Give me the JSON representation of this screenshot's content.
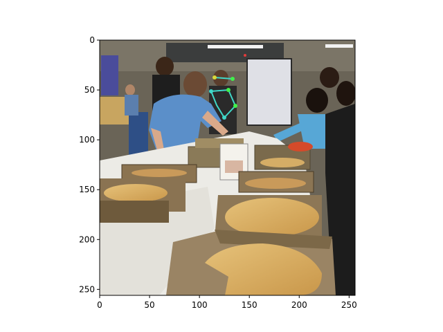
{
  "figure": {
    "image": {
      "subject": "pizza-party-photo",
      "scene_items": [
        "people",
        "pizza-boxes",
        "pizzas",
        "white-table",
        "whiteboard",
        "sign",
        "pose-annotation"
      ],
      "pose_annotation_colors": [
        "#3fd7c8",
        "#41f04a",
        "#d8d83a",
        "#e33b3b"
      ]
    },
    "x_axis": {
      "range": [
        0,
        256
      ],
      "ticks": [
        "0",
        "50",
        "100",
        "150",
        "200",
        "250"
      ]
    },
    "y_axis": {
      "range": [
        0,
        256
      ],
      "ticks": [
        "0",
        "50",
        "100",
        "150",
        "200",
        "250"
      ]
    }
  }
}
